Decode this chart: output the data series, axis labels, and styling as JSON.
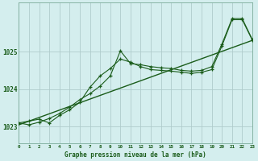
{
  "title": "Graphe pression niveau de la mer (hPa)",
  "background_color": "#d4eeee",
  "grid_color": "#b0cccc",
  "line_color": "#1a5c1a",
  "xlim": [
    0,
    23
  ],
  "ylim": [
    1022.55,
    1026.3
  ],
  "yticks": [
    1023,
    1024,
    1025
  ],
  "xticks": [
    0,
    1,
    2,
    3,
    4,
    5,
    6,
    7,
    8,
    9,
    10,
    11,
    12,
    13,
    14,
    15,
    16,
    17,
    18,
    19,
    20,
    21,
    22,
    23
  ],
  "series1_x": [
    0,
    1,
    2,
    3,
    4,
    5,
    6,
    7,
    8,
    9,
    10,
    11,
    12,
    13,
    14,
    15,
    16,
    17,
    18,
    19,
    20,
    21,
    22,
    23
  ],
  "series1_y": [
    1023.1,
    1023.15,
    1023.2,
    1023.1,
    1023.3,
    1023.45,
    1023.65,
    1024.05,
    1024.35,
    1024.55,
    1024.8,
    1024.72,
    1024.6,
    1024.52,
    1024.5,
    1024.48,
    1024.45,
    1024.42,
    1024.45,
    1024.52,
    1025.15,
    1025.85,
    1025.85,
    1025.3
  ],
  "series2_x": [
    0,
    1,
    2,
    3,
    4,
    5,
    6,
    7,
    8,
    9,
    10,
    11,
    12,
    13,
    14,
    15,
    16,
    17,
    18,
    19,
    20,
    21,
    22,
    23
  ],
  "series2_y": [
    1023.1,
    1023.05,
    1023.12,
    1023.22,
    1023.35,
    1023.52,
    1023.72,
    1023.88,
    1024.08,
    1024.35,
    1025.02,
    1024.68,
    1024.65,
    1024.6,
    1024.57,
    1024.55,
    1024.5,
    1024.48,
    1024.5,
    1024.6,
    1025.2,
    1025.88,
    1025.88,
    1025.32
  ],
  "trend_x": [
    0,
    23
  ],
  "trend_y": [
    1023.05,
    1025.3
  ]
}
